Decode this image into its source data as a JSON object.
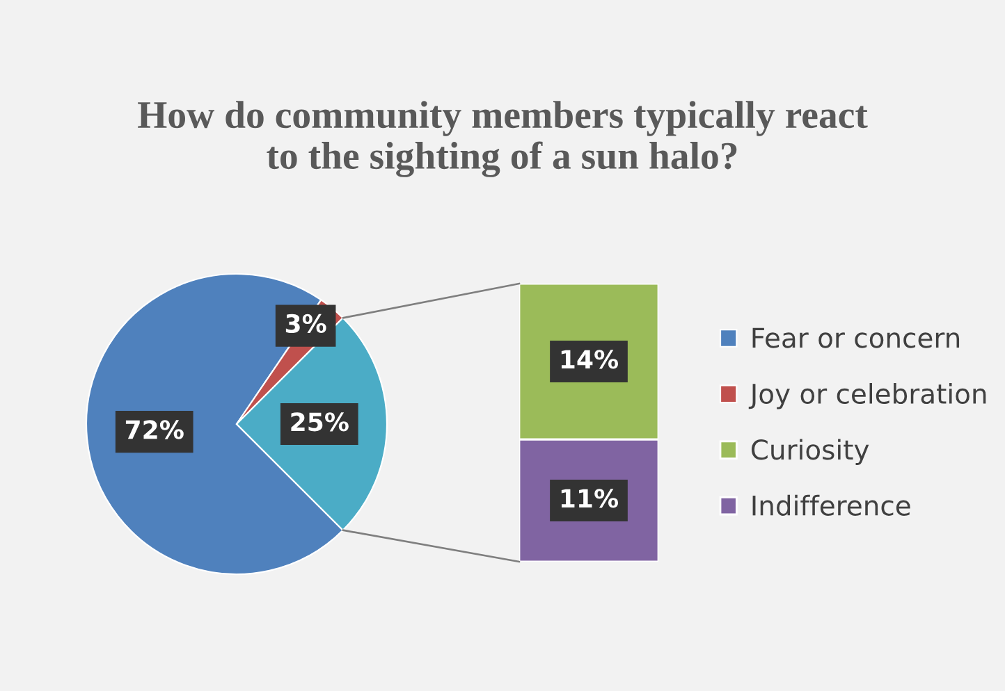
{
  "chart_data": [
    {
      "type": "pie",
      "title": "How do community members typically react to the sighting of a sun halo?",
      "categories": [
        "Fear or concern",
        "Joy or celebration",
        null
      ],
      "values": [
        72,
        3,
        25
      ],
      "colors": [
        "#4f81bd",
        "#c0504d",
        "#4bacc6"
      ],
      "value_labels": [
        "72%",
        "3%",
        "25%"
      ],
      "legend": "right"
    },
    {
      "type": "bar",
      "stacked": true,
      "categories": [
        null
      ],
      "series": [
        {
          "name": "Indifference",
          "color": "#8064a2",
          "values": [
            11
          ],
          "value_labels": [
            "11%"
          ]
        },
        {
          "name": "Curiosity",
          "color": "#9bbb59",
          "values": [
            14
          ],
          "value_labels": [
            "14%"
          ]
        }
      ],
      "legend": "right"
    }
  ]
}
